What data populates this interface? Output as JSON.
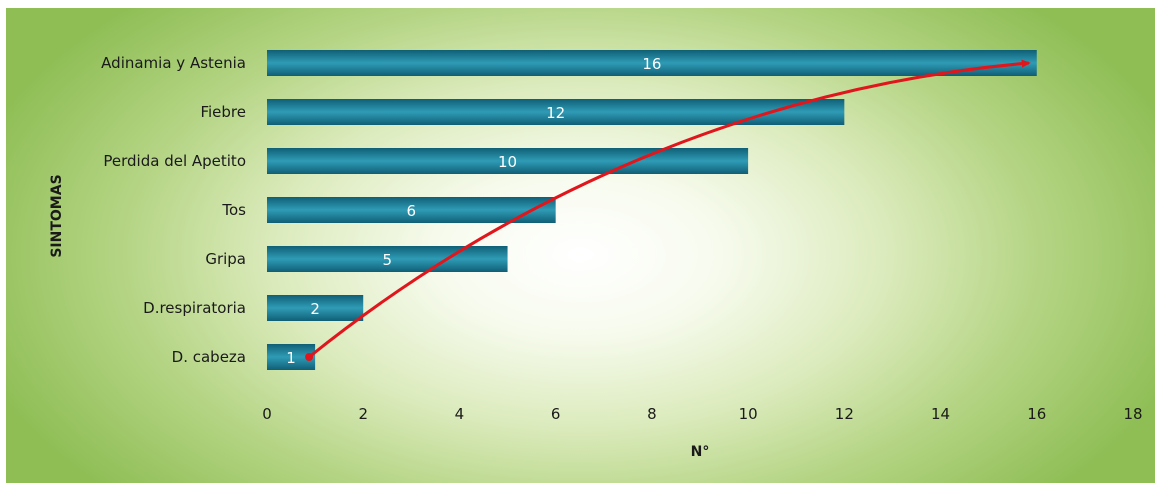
{
  "chart_data": {
    "type": "bar",
    "orientation": "horizontal",
    "categories": [
      "Adinamia y Astenia",
      "Fiebre",
      "Perdida del Apetito",
      "Tos",
      "Gripa",
      "D.respiratoria",
      "D. cabeza"
    ],
    "values": [
      16,
      12,
      10,
      6,
      5,
      2,
      1
    ],
    "xlabel": "N°",
    "ylabel": "SINTOMAS",
    "xlim": [
      0,
      18
    ],
    "xticks": [
      0,
      2,
      4,
      6,
      8,
      10,
      12,
      14,
      16,
      18
    ],
    "grid": false,
    "data_labels": true,
    "annotation": "red curved arrow from the smallest bar (1) up to the largest bar (16)",
    "colors": {
      "bar_light": "#2f9bb5",
      "bar_mid": "#1c7f98",
      "bar_dark": "#0f5f76",
      "arrow": "#e0161c",
      "background_center": "#ffffff",
      "background_edge": "#8fbe55"
    }
  }
}
